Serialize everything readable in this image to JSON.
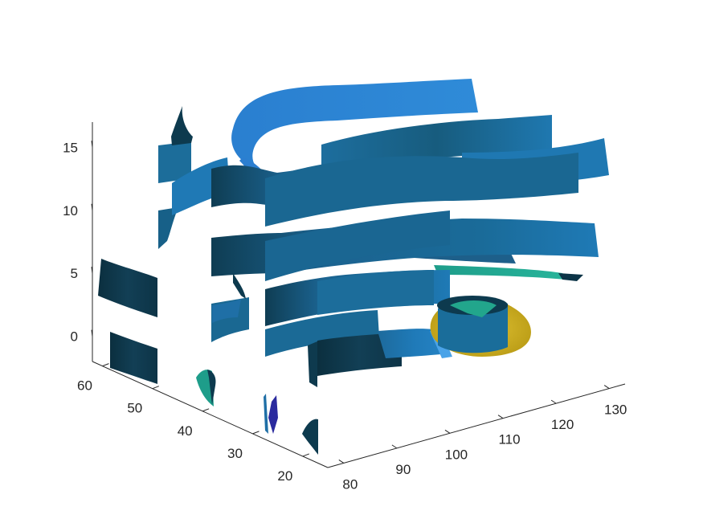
{
  "chart_data": {
    "type": "surface-3d",
    "title": "",
    "xlabel": "",
    "ylabel": "",
    "zlabel": "",
    "x_axis": {
      "ticks": [
        80,
        90,
        100,
        110,
        120,
        130
      ],
      "labels": [
        "80",
        "90",
        "100",
        "110",
        "120",
        "130"
      ]
    },
    "y_axis": {
      "ticks": [
        20,
        30,
        40,
        50,
        60
      ],
      "labels": [
        "20",
        "30",
        "40",
        "50",
        "60"
      ]
    },
    "z_axis": {
      "ticks": [
        0,
        5,
        10,
        15
      ],
      "labels": [
        "0",
        "5",
        "10",
        "15"
      ]
    },
    "grid": false,
    "legend": "none",
    "colors": {
      "dark_teal": "#0d3b4f",
      "ocean_blue": "#1f6fa6",
      "bright_blue": "#2b86cf",
      "teal_green": "#22a88f",
      "gold": "#d4b21e",
      "indigo": "#2a2a9e"
    },
    "sheets": [
      {
        "name": "ribbon-top",
        "x": [
          88,
          130
        ],
        "y": [
          35,
          38
        ],
        "z": [
          14,
          16
        ]
      },
      {
        "name": "ribbon-upper-front",
        "x": [
          84,
          132
        ],
        "y": [
          28,
          32
        ],
        "z": [
          10,
          13
        ]
      },
      {
        "name": "ribbon-upper-back",
        "x": [
          92,
          134
        ],
        "y": [
          40,
          44
        ],
        "z": [
          11,
          14
        ]
      },
      {
        "name": "ribbon-mid",
        "x": [
          84,
          132
        ],
        "y": [
          28,
          32
        ],
        "z": [
          6,
          10
        ]
      },
      {
        "name": "ribbon-low",
        "x": [
          84,
          126
        ],
        "y": [
          28,
          32
        ],
        "z": [
          2,
          6
        ]
      },
      {
        "name": "ribbon-bottom",
        "x": [
          82,
          112
        ],
        "y": [
          18,
          24
        ],
        "z": [
          -1,
          2
        ]
      },
      {
        "name": "green-band",
        "x": [
          104,
          130
        ],
        "y": [
          18,
          22
        ],
        "z": [
          4,
          5
        ]
      },
      {
        "name": "yellow-blob",
        "x": [
          108,
          122
        ],
        "y": [
          18,
          24
        ],
        "z": [
          -1,
          2
        ]
      },
      {
        "name": "left-wall-sheets",
        "x": [
          80,
          82
        ],
        "y": [
          54,
          60
        ],
        "z": [
          -2,
          6
        ]
      }
    ]
  }
}
